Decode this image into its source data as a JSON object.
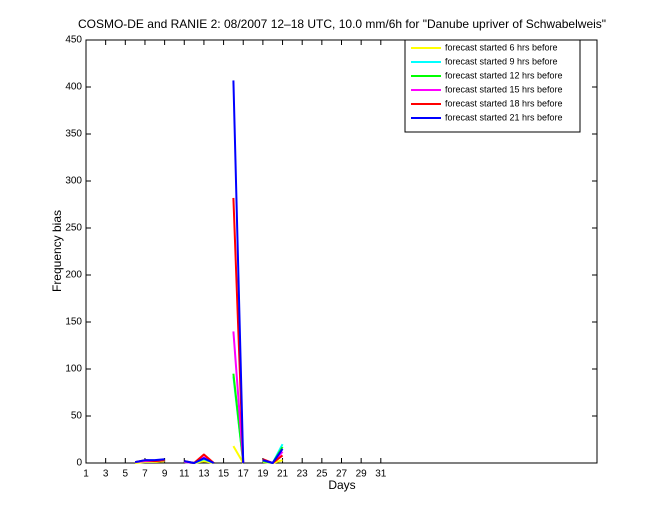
{
  "chart_data": {
    "type": "line",
    "title": "COSMO-DE and RANIE 2: 08/2007 12–18 UTC, 10.0 mm/6h for \"Danube upriver of Schwabelweis\"",
    "xlabel": "Days",
    "ylabel": "Frequency bias",
    "x": [
      1,
      2,
      3,
      4,
      5,
      6,
      7,
      8,
      9,
      10,
      11,
      12,
      13,
      14,
      15,
      16,
      17,
      18,
      19,
      20,
      21,
      22,
      23,
      24,
      25,
      26,
      27,
      28,
      29,
      30,
      31
    ],
    "series": [
      {
        "name": "forecast started 6 hrs before",
        "color": "#ffff00",
        "values": [
          null,
          null,
          0,
          null,
          null,
          0,
          1,
          1,
          2,
          null,
          1,
          0,
          2,
          0,
          null,
          18,
          0,
          null,
          1,
          0,
          3,
          null,
          0,
          null,
          null,
          null,
          null,
          null,
          2,
          null,
          null
        ]
      },
      {
        "name": "forecast started 9 hrs before",
        "color": "#00ffff",
        "values": [
          null,
          null,
          1,
          null,
          null,
          1,
          2,
          2,
          3,
          null,
          1,
          0,
          4,
          0,
          null,
          92,
          0,
          null,
          2,
          0,
          20,
          null,
          0,
          null,
          null,
          null,
          null,
          null,
          0,
          null,
          null
        ]
      },
      {
        "name": "forecast started 12 hrs before",
        "color": "#00ff00",
        "values": [
          null,
          null,
          1,
          null,
          null,
          1,
          2,
          2,
          3,
          null,
          1,
          0,
          5,
          0,
          null,
          95,
          0,
          null,
          2,
          0,
          17,
          null,
          0,
          null,
          null,
          null,
          null,
          null,
          0,
          null,
          null
        ]
      },
      {
        "name": "forecast started 15 hrs before",
        "color": "#ff00ff",
        "values": [
          null,
          null,
          1,
          null,
          null,
          1,
          2,
          2,
          3,
          null,
          1,
          0,
          6,
          0,
          null,
          140,
          0,
          null,
          3,
          0,
          12,
          null,
          0,
          null,
          null,
          null,
          null,
          null,
          0,
          null,
          null
        ]
      },
      {
        "name": "forecast started 18 hrs before",
        "color": "#ff0000",
        "values": [
          null,
          null,
          1,
          null,
          null,
          1,
          3,
          2,
          3,
          null,
          2,
          0,
          9,
          0,
          null,
          282,
          0,
          null,
          4,
          0,
          8,
          null,
          0,
          null,
          null,
          null,
          null,
          null,
          0,
          null,
          null
        ]
      },
      {
        "name": "forecast started 21 hrs before",
        "color": "#0000ff",
        "values": [
          null,
          null,
          1,
          null,
          null,
          1,
          3,
          3,
          4,
          null,
          2,
          0,
          5,
          0,
          null,
          407,
          0,
          null,
          3,
          0,
          15,
          null,
          0,
          null,
          null,
          null,
          null,
          null,
          0,
          null,
          null
        ]
      }
    ],
    "xlim": [
      1,
      53
    ],
    "ylim": [
      0,
      450
    ],
    "xticks": [
      1,
      3,
      5,
      7,
      9,
      11,
      13,
      15,
      17,
      19,
      21,
      23,
      25,
      27,
      29,
      31
    ],
    "yticks": [
      0,
      50,
      100,
      150,
      200,
      250,
      300,
      350,
      400,
      450
    ],
    "legend": "upper right"
  }
}
